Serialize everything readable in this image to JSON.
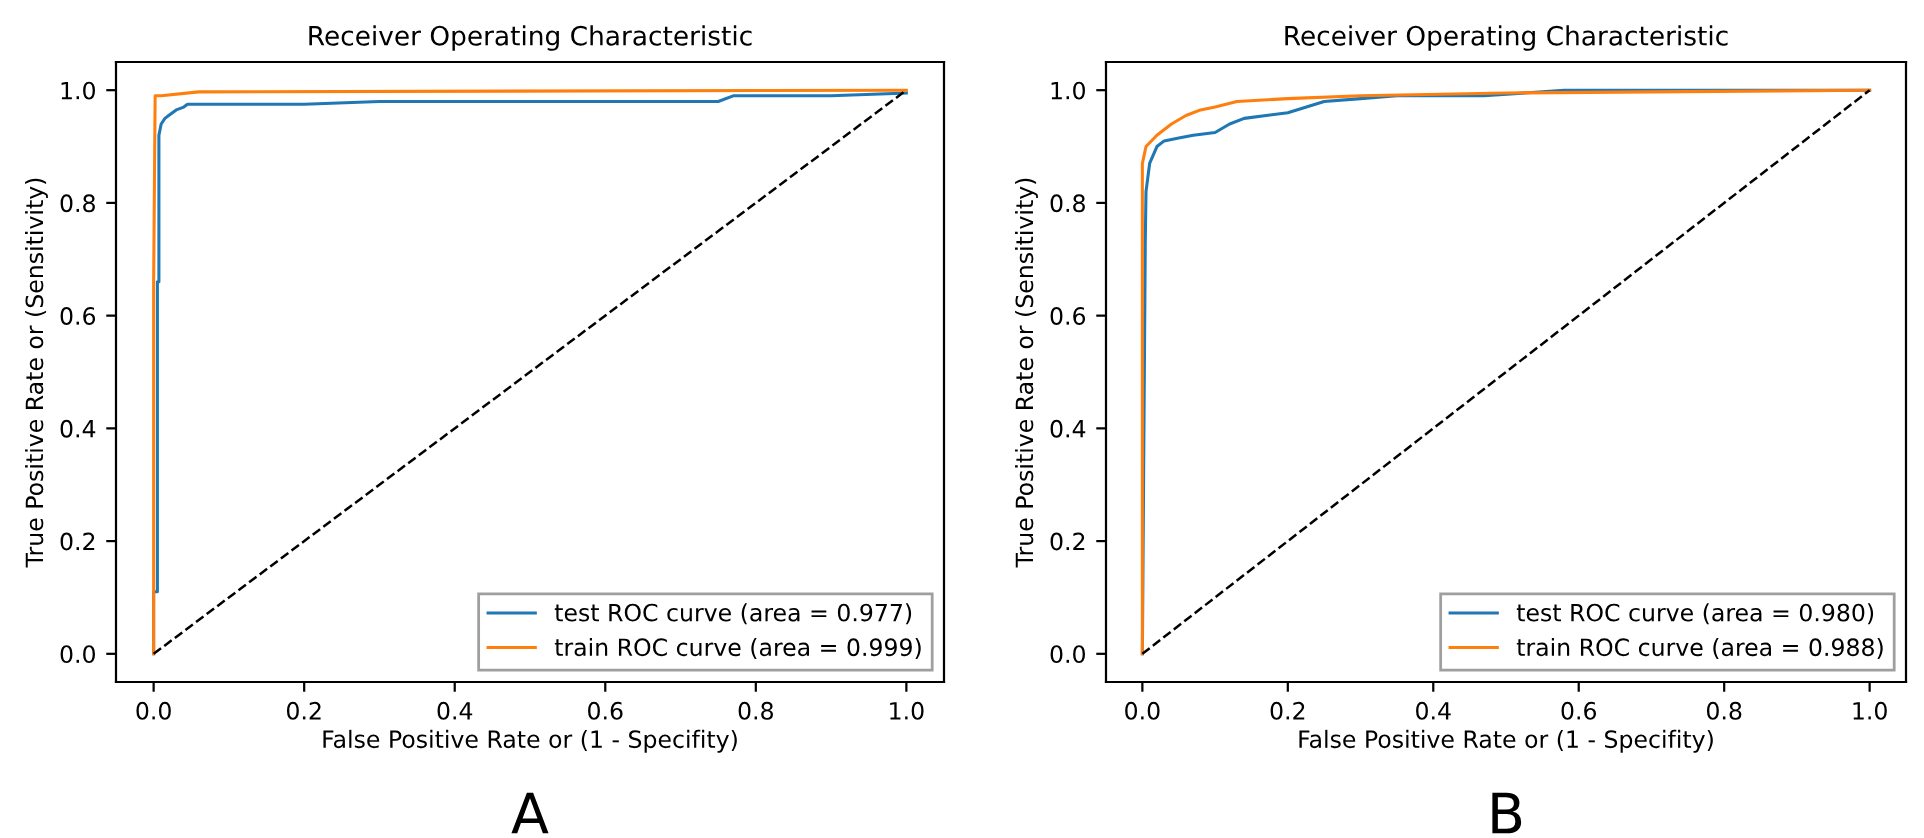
{
  "chart_data": [
    {
      "type": "line",
      "title": "Receiver Operating Characteristic",
      "xlabel": "False Positive Rate or (1 - Specifity)",
      "ylabel": "True Positive Rate or (Sensitivity)",
      "annotations": [
        "A"
      ],
      "xlim": [
        -0.05,
        1.05
      ],
      "ylim": [
        -0.05,
        1.05
      ],
      "xticks": [
        {
          "value": 0,
          "label": "0.0"
        },
        {
          "value": 0.2,
          "label": "0.2"
        },
        {
          "value": 0.4,
          "label": "0.4"
        },
        {
          "value": 0.6,
          "label": "0.6"
        },
        {
          "value": 0.8,
          "label": "0.8"
        },
        {
          "value": 1,
          "label": "1.0"
        }
      ],
      "yticks": [
        {
          "value": 0,
          "label": "0.0"
        },
        {
          "value": 0.2,
          "label": "0.2"
        },
        {
          "value": 0.4,
          "label": "0.4"
        },
        {
          "value": 0.6,
          "label": "0.6"
        },
        {
          "value": 0.8,
          "label": "0.8"
        },
        {
          "value": 1,
          "label": "1.0"
        }
      ],
      "grid": false,
      "legend": "lower right",
      "series": [
        {
          "name": "test ROC curve (area = 0.977)",
          "color": "#1f77b4",
          "x": [
            0,
            0,
            0.005,
            0.005,
            0.007,
            0.007,
            0.01,
            0.015,
            0.02,
            0.03,
            0.04,
            0.045,
            0.2,
            0.3,
            0.75,
            0.77,
            0.9,
            1.0
          ],
          "values": [
            0,
            0.11,
            0.11,
            0.66,
            0.66,
            0.92,
            0.94,
            0.95,
            0.955,
            0.965,
            0.97,
            0.975,
            0.975,
            0.98,
            0.98,
            0.99,
            0.99,
            0.995
          ]
        },
        {
          "name": "train ROC curve (area = 0.999)",
          "color": "#ff7f0e",
          "x": [
            0,
            0,
            0.002,
            0.01,
            0.06,
            1.0
          ],
          "values": [
            0,
            0.66,
            0.99,
            0.99,
            0.997,
            1.0
          ]
        },
        {
          "color": "#000000",
          "line_style": "dashed",
          "x": [
            0,
            1
          ],
          "values": [
            0,
            1
          ]
        }
      ]
    },
    {
      "type": "line",
      "title": "Receiver Operating Characteristic",
      "xlabel": "False Positive Rate or (1 - Specifity)",
      "ylabel": "True Positive Rate or (Sensitivity)",
      "annotations": [
        "B"
      ],
      "xlim": [
        -0.05,
        1.05
      ],
      "ylim": [
        -0.05,
        1.05
      ],
      "xticks": [
        {
          "value": 0,
          "label": "0.0"
        },
        {
          "value": 0.2,
          "label": "0.2"
        },
        {
          "value": 0.4,
          "label": "0.4"
        },
        {
          "value": 0.6,
          "label": "0.6"
        },
        {
          "value": 0.8,
          "label": "0.8"
        },
        {
          "value": 1,
          "label": "1.0"
        }
      ],
      "yticks": [
        {
          "value": 0,
          "label": "0.0"
        },
        {
          "value": 0.2,
          "label": "0.2"
        },
        {
          "value": 0.4,
          "label": "0.4"
        },
        {
          "value": 0.6,
          "label": "0.6"
        },
        {
          "value": 0.8,
          "label": "0.8"
        },
        {
          "value": 1,
          "label": "1.0"
        }
      ],
      "grid": false,
      "legend": "lower right",
      "series": [
        {
          "name": "test ROC curve (area = 0.980)",
          "color": "#1f77b4",
          "x": [
            0,
            0.004,
            0.005,
            0.01,
            0.02,
            0.03,
            0.05,
            0.07,
            0.1,
            0.12,
            0.14,
            0.2,
            0.25,
            0.3,
            0.35,
            0.42,
            0.47,
            0.58,
            0.68,
            0.84,
            1.0
          ],
          "values": [
            0,
            0.73,
            0.82,
            0.87,
            0.9,
            0.91,
            0.915,
            0.92,
            0.925,
            0.94,
            0.95,
            0.96,
            0.98,
            0.985,
            0.99,
            0.99,
            0.99,
            1.0,
            1.0,
            1.0,
            1.0
          ]
        },
        {
          "name": "train ROC curve (area = 0.988)",
          "color": "#ff7f0e",
          "x": [
            0,
            0,
            0.005,
            0.02,
            0.04,
            0.06,
            0.08,
            0.1,
            0.13,
            0.2,
            0.3,
            0.5,
            1.0
          ],
          "values": [
            0,
            0.87,
            0.9,
            0.92,
            0.94,
            0.955,
            0.965,
            0.97,
            0.98,
            0.985,
            0.99,
            0.995,
            1.0
          ]
        },
        {
          "color": "#000000",
          "line_style": "dashed",
          "x": [
            0,
            1
          ],
          "values": [
            0,
            1
          ]
        }
      ]
    }
  ]
}
